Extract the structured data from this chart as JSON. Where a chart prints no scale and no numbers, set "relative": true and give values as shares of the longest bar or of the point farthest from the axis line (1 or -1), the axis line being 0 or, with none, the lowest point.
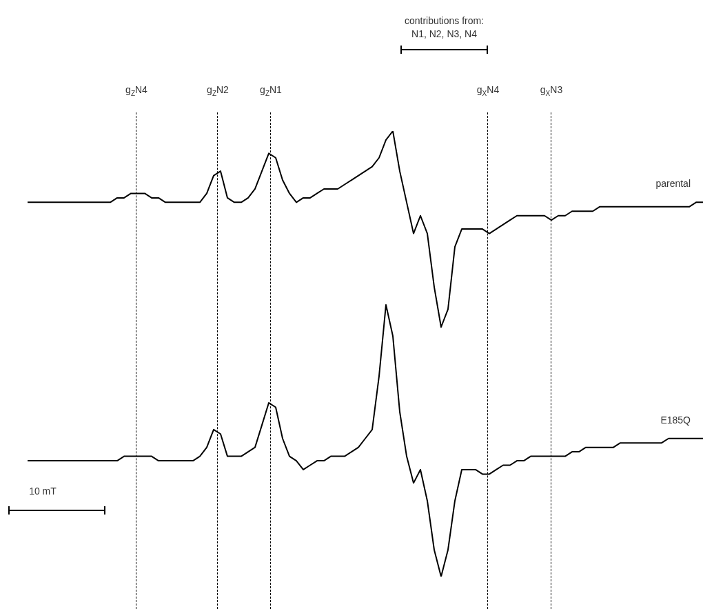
{
  "chart_data": {
    "type": "line",
    "relative": true,
    "line_style": "solid",
    "categories": [
      null,
      null,
      null,
      null,
      null,
      null,
      null,
      null,
      null,
      null,
      null,
      null,
      null,
      null,
      null,
      null,
      null,
      null,
      null,
      null,
      null,
      null,
      null,
      null,
      null,
      null,
      null,
      null,
      null,
      null,
      null,
      null,
      null,
      null,
      null,
      null,
      null,
      null,
      null,
      null,
      null,
      null,
      null,
      null,
      null,
      null,
      null,
      null,
      null,
      null,
      null,
      null,
      null,
      null,
      null,
      null,
      null,
      null,
      null,
      null,
      null,
      null,
      null,
      null,
      null,
      null,
      null,
      null,
      null,
      null,
      null,
      null,
      null,
      null,
      null,
      null,
      null,
      null,
      null,
      null,
      null,
      null,
      null,
      null,
      null,
      null,
      null,
      null,
      null,
      null,
      null,
      null,
      null,
      null,
      null,
      null,
      null,
      null,
      null
    ],
    "annotations": [
      "contributions from:",
      "N1, N2, N3, N4",
      "10 mT",
      "g$_{Z}$N4",
      "g$_{Z}$N2",
      "g$_{Z}$N1",
      "g$_{X}$N4",
      "g$_{X}$N3"
    ],
    "series": [
      {
        "name": "parental",
        "color": "#000000",
        "values": [
          0.84,
          0.84,
          0.84,
          0.84,
          0.84,
          0.84,
          0.84,
          0.84,
          0.84,
          0.84,
          0.84,
          0.84,
          0.84,
          0.85,
          0.85,
          0.86,
          0.86,
          0.86,
          0.85,
          0.85,
          0.84,
          0.84,
          0.84,
          0.84,
          0.84,
          0.84,
          0.86,
          0.9,
          0.91,
          0.85,
          0.84,
          0.84,
          0.85,
          0.87,
          0.91,
          0.95,
          0.94,
          0.89,
          0.86,
          0.84,
          0.85,
          0.85,
          0.86,
          0.87,
          0.87,
          0.87,
          0.88,
          0.89,
          0.9,
          0.91,
          0.92,
          0.94,
          0.98,
          1,
          0.91,
          0.84,
          0.77,
          0.81,
          0.77,
          0.65,
          0.56,
          0.6,
          0.74,
          0.78,
          0.78,
          0.78,
          0.78,
          0.77,
          0.78,
          0.79,
          0.8,
          0.81,
          0.81,
          0.81,
          0.81,
          0.81,
          0.8,
          0.81,
          0.81,
          0.82,
          0.82,
          0.82,
          0.82,
          0.83,
          0.83,
          0.83,
          0.83,
          0.83,
          0.83,
          0.83,
          0.83,
          0.83,
          0.83,
          0.83,
          0.83,
          0.83,
          0.83,
          0.84,
          0.84
        ]
      },
      {
        "name": "E185Q",
        "color": "#000000",
        "values": [
          0.26,
          0.26,
          0.26,
          0.26,
          0.26,
          0.26,
          0.26,
          0.26,
          0.26,
          0.26,
          0.26,
          0.26,
          0.26,
          0.26,
          0.27,
          0.27,
          0.27,
          0.27,
          0.27,
          0.26,
          0.26,
          0.26,
          0.26,
          0.26,
          0.26,
          0.27,
          0.29,
          0.33,
          0.32,
          0.27,
          0.27,
          0.27,
          0.28,
          0.29,
          0.34,
          0.39,
          0.38,
          0.31,
          0.27,
          0.26,
          0.24,
          0.25,
          0.26,
          0.26,
          0.27,
          0.27,
          0.27,
          0.28,
          0.29,
          0.31,
          0.33,
          0.45,
          0.61,
          0.54,
          0.37,
          0.27,
          0.21,
          0.24,
          0.17,
          0.06,
          0,
          0.06,
          0.17,
          0.24,
          0.24,
          0.24,
          0.23,
          0.23,
          0.24,
          0.25,
          0.25,
          0.26,
          0.26,
          0.27,
          0.27,
          0.27,
          0.27,
          0.27,
          0.27,
          0.28,
          0.28,
          0.29,
          0.29,
          0.29,
          0.29,
          0.29,
          0.3,
          0.3,
          0.3,
          0.3,
          0.3,
          0.3,
          0.3,
          0.31,
          0.31,
          0.31,
          0.31,
          0.31,
          0.31
        ]
      }
    ]
  }
}
